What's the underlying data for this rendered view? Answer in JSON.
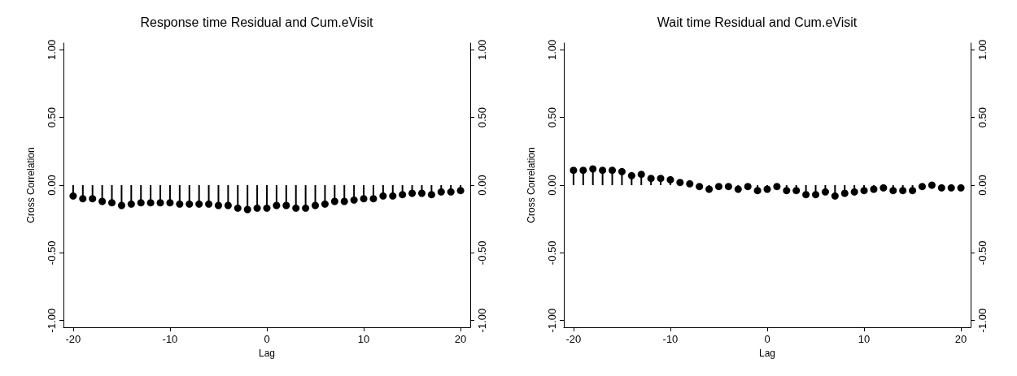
{
  "chart_data": [
    {
      "type": "lollipop",
      "title": "Response time Residual and Cum.eVisit",
      "xlabel": "Lag",
      "ylabel": "Cross Correlation",
      "x": [
        -20,
        -19,
        -18,
        -17,
        -16,
        -15,
        -14,
        -13,
        -12,
        -11,
        -10,
        -9,
        -8,
        -7,
        -6,
        -5,
        -4,
        -3,
        -2,
        -1,
        0,
        1,
        2,
        3,
        4,
        5,
        6,
        7,
        8,
        9,
        10,
        11,
        12,
        13,
        14,
        15,
        16,
        17,
        18,
        19,
        20
      ],
      "values": [
        -0.08,
        -0.1,
        -0.1,
        -0.12,
        -0.13,
        -0.15,
        -0.14,
        -0.13,
        -0.13,
        -0.13,
        -0.13,
        -0.14,
        -0.14,
        -0.14,
        -0.14,
        -0.15,
        -0.15,
        -0.17,
        -0.18,
        -0.17,
        -0.17,
        -0.15,
        -0.15,
        -0.17,
        -0.17,
        -0.15,
        -0.14,
        -0.12,
        -0.12,
        -0.11,
        -0.1,
        -0.1,
        -0.08,
        -0.08,
        -0.07,
        -0.06,
        -0.06,
        -0.07,
        -0.05,
        -0.05,
        -0.04
      ],
      "color": "#000000",
      "marker": "circle",
      "grid": false,
      "xlim": [
        -21,
        21
      ],
      "xticks": [
        -20,
        -10,
        0,
        10,
        20
      ],
      "ylim": [
        -1.05,
        1.05
      ],
      "yticks": [
        {
          "value": -1,
          "label": "-1.00"
        },
        {
          "value": -0.5,
          "label": "-0.50"
        },
        {
          "value": 0,
          "label": "0.00"
        },
        {
          "value": 0.5,
          "label": "0.50"
        },
        {
          "value": 1,
          "label": "1.00"
        }
      ],
      "y2lim": [
        -1.05,
        1.05
      ],
      "y2ticks": [
        {
          "value": -1,
          "label": "-1.00"
        },
        {
          "value": -0.5,
          "label": "-0.50"
        },
        {
          "value": 0,
          "label": "0.00"
        },
        {
          "value": 0.5,
          "label": "0.50"
        },
        {
          "value": 1,
          "label": "1.00"
        }
      ]
    },
    {
      "type": "lollipop",
      "title": "Wait time Residual and Cum.eVisit",
      "xlabel": "Lag",
      "ylabel": "Cross Correlation",
      "x": [
        -20,
        -19,
        -18,
        -17,
        -16,
        -15,
        -14,
        -13,
        -12,
        -11,
        -10,
        -9,
        -8,
        -7,
        -6,
        -5,
        -4,
        -3,
        -2,
        -1,
        0,
        1,
        2,
        3,
        4,
        5,
        6,
        7,
        8,
        9,
        10,
        11,
        12,
        13,
        14,
        15,
        16,
        17,
        18,
        19,
        20
      ],
      "values": [
        0.11,
        0.11,
        0.12,
        0.11,
        0.11,
        0.1,
        0.07,
        0.08,
        0.05,
        0.05,
        0.04,
        0.02,
        0.01,
        -0.01,
        -0.03,
        -0.01,
        -0.01,
        -0.03,
        -0.01,
        -0.04,
        -0.03,
        -0.01,
        -0.04,
        -0.04,
        -0.07,
        -0.07,
        -0.05,
        -0.08,
        -0.06,
        -0.05,
        -0.04,
        -0.03,
        -0.02,
        -0.04,
        -0.04,
        -0.04,
        -0.01,
        0.0,
        -0.02,
        -0.02,
        -0.02
      ],
      "color": "#000000",
      "marker": "circle",
      "grid": false,
      "xlim": [
        -21,
        21
      ],
      "xticks": [
        -20,
        -10,
        0,
        10,
        20
      ],
      "ylim": [
        -1.05,
        1.05
      ],
      "yticks": [
        {
          "value": -1,
          "label": "-1.00"
        },
        {
          "value": -0.5,
          "label": "-0.50"
        },
        {
          "value": 0,
          "label": "0.00"
        },
        {
          "value": 0.5,
          "label": "0.50"
        },
        {
          "value": 1,
          "label": "1.00"
        }
      ],
      "y2lim": [
        -1.05,
        1.05
      ],
      "y2ticks": [
        {
          "value": -1,
          "label": "-1.00"
        },
        {
          "value": -0.5,
          "label": "-0.50"
        },
        {
          "value": 0,
          "label": "0.00"
        },
        {
          "value": 0.5,
          "label": "0.50"
        },
        {
          "value": 1,
          "label": "1.00"
        }
      ]
    }
  ]
}
